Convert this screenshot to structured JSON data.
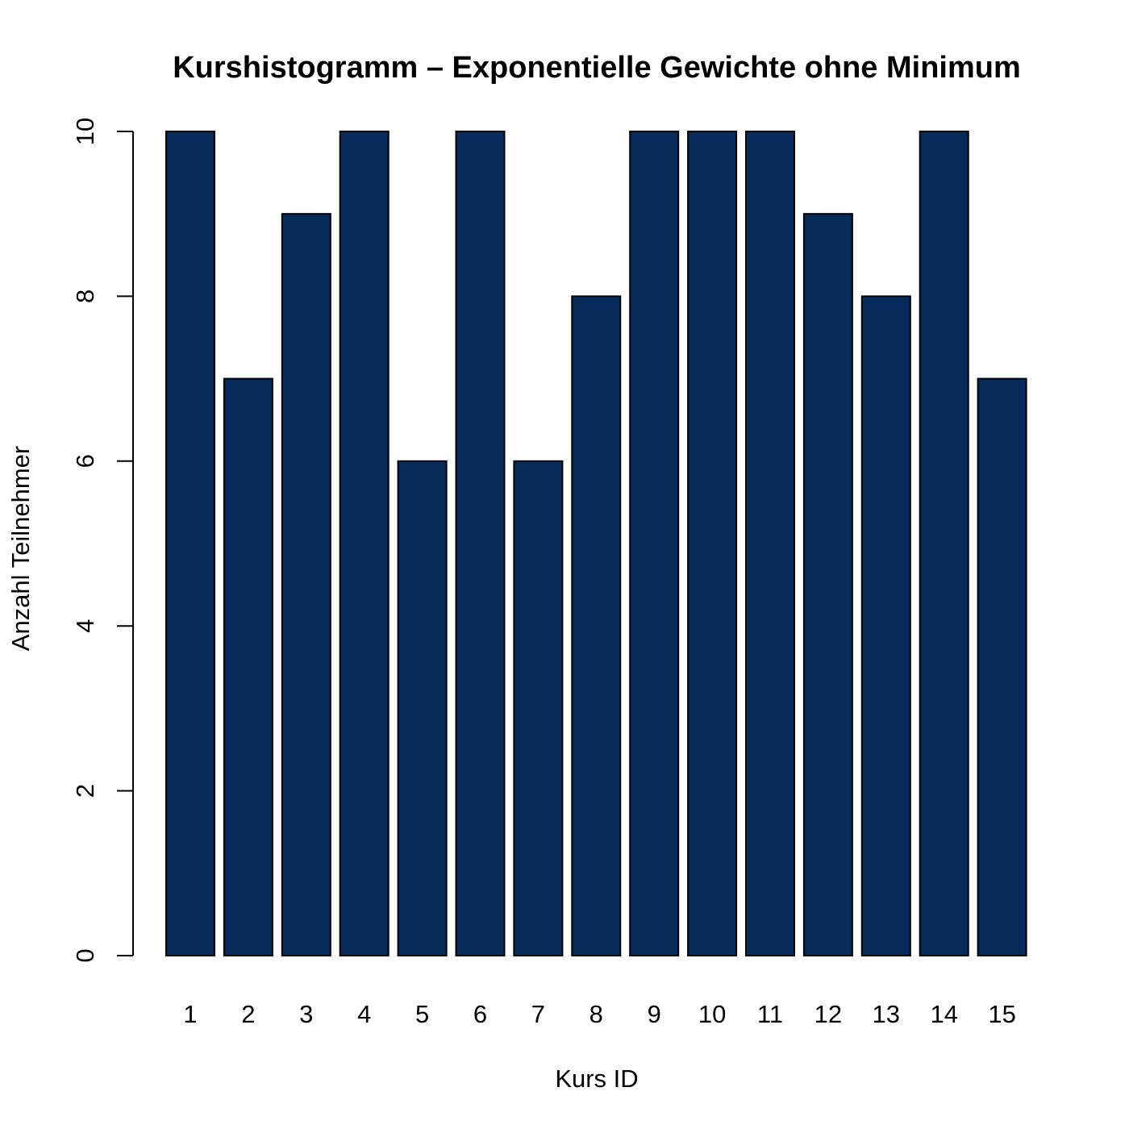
{
  "chart_data": {
    "type": "bar",
    "title": "Kurshistogramm – Exponentielle Gewichte ohne Minimum",
    "xlabel": "Kurs ID",
    "ylabel": "Anzahl Teilnehmer",
    "categories": [
      "1",
      "2",
      "3",
      "4",
      "5",
      "6",
      "7",
      "8",
      "9",
      "10",
      "11",
      "12",
      "13",
      "14",
      "15"
    ],
    "values": [
      10,
      7,
      9,
      10,
      6,
      10,
      6,
      8,
      10,
      10,
      10,
      9,
      8,
      10,
      7
    ],
    "ylim": [
      0,
      10
    ],
    "yticks": [
      "0",
      "2",
      "4",
      "6",
      "8",
      "10"
    ],
    "grid": false,
    "bar_color": "#062b5b"
  }
}
